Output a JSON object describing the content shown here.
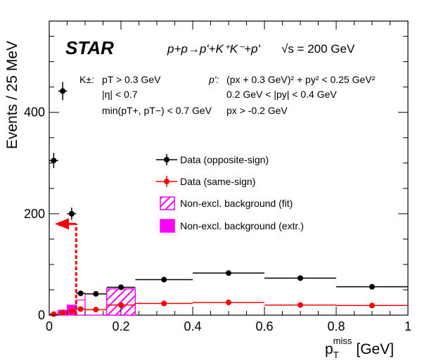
{
  "chart_data": {
    "type": "scatter",
    "experiment": "STAR",
    "process": "p+p→p'+K⁺K⁻+p'",
    "energy": "√s = 200 GeV",
    "xlabel": "p",
    "xlabel_sub": "T",
    "xlabel_sup": "miss",
    "xlabel_unit": "[GeV]",
    "ylabel": "Events / 25 MeV",
    "xlim": [
      0,
      1
    ],
    "ylim": [
      0,
      580
    ],
    "xticks": [
      0,
      0.2,
      0.4,
      0.6,
      0.8,
      1
    ],
    "xtick_labels": [
      "0",
      "0.2",
      "0.4",
      "0.6",
      "0.8",
      "1"
    ],
    "yticks": [
      0,
      200,
      400
    ],
    "ytick_labels": [
      "0",
      "200",
      "400"
    ],
    "cuts_kaon": {
      "label": "K±:",
      "lines": [
        "pT > 0.3 GeV",
        "|η| < 0.7",
        "min(pT+, pT−) < 0.7 GeV"
      ]
    },
    "cuts_proton": {
      "label": "p':",
      "lines": [
        "(px + 0.3 GeV)² + py² < 0.25 GeV²",
        "0.2 GeV < |py| < 0.4 GeV",
        "px > -0.2 GeV"
      ]
    },
    "legend": [
      {
        "label": "Data (opposite-sign)"
      },
      {
        "label": "Data (same-sign)"
      },
      {
        "label": "Non-excl. background (fit)"
      },
      {
        "label": "Non-excl. background (extr.)"
      }
    ],
    "cut_value": 0.075,
    "series": [
      {
        "name": "Data (opposite-sign)",
        "color": "#000000",
        "points": [
          {
            "x": 0.0125,
            "y": 305,
            "err": 15,
            "xlo": 0.0,
            "xhi": 0.025
          },
          {
            "x": 0.0375,
            "y": 442,
            "err": 18,
            "xlo": 0.025,
            "xhi": 0.05
          },
          {
            "x": 0.0625,
            "y": 200,
            "err": 12,
            "xlo": 0.05,
            "xhi": 0.075
          },
          {
            "x": 0.0875,
            "y": 43,
            "err": 5,
            "xlo": 0.075,
            "xhi": 0.1
          },
          {
            "x": 0.13,
            "y": 42,
            "err": 5,
            "xlo": 0.1,
            "xhi": 0.16
          },
          {
            "x": 0.2,
            "y": 55,
            "err": 5,
            "xlo": 0.16,
            "xhi": 0.24
          },
          {
            "x": 0.32,
            "y": 70,
            "err": 5,
            "xlo": 0.24,
            "xhi": 0.4
          },
          {
            "x": 0.5,
            "y": 83,
            "err": 5,
            "xlo": 0.4,
            "xhi": 0.6
          },
          {
            "x": 0.7,
            "y": 73,
            "err": 5,
            "xlo": 0.6,
            "xhi": 0.8
          },
          {
            "x": 0.9,
            "y": 56,
            "err": 5,
            "xlo": 0.8,
            "xhi": 1.0
          }
        ]
      },
      {
        "name": "Data (same-sign)",
        "color": "#ff0000",
        "points": [
          {
            "x": 0.0125,
            "y": 2,
            "err": 1,
            "xlo": 0.0,
            "xhi": 0.025
          },
          {
            "x": 0.0375,
            "y": 5,
            "err": 2,
            "xlo": 0.025,
            "xhi": 0.05
          },
          {
            "x": 0.0625,
            "y": 8,
            "err": 2,
            "xlo": 0.05,
            "xhi": 0.075
          },
          {
            "x": 0.0875,
            "y": 12,
            "err": 3,
            "xlo": 0.075,
            "xhi": 0.1
          },
          {
            "x": 0.13,
            "y": 11,
            "err": 3,
            "xlo": 0.1,
            "xhi": 0.16
          },
          {
            "x": 0.2,
            "y": 20,
            "err": 3,
            "xlo": 0.16,
            "xhi": 0.24
          },
          {
            "x": 0.32,
            "y": 23,
            "err": 3,
            "xlo": 0.24,
            "xhi": 0.4
          },
          {
            "x": 0.5,
            "y": 25,
            "err": 3,
            "xlo": 0.4,
            "xhi": 0.6
          },
          {
            "x": 0.7,
            "y": 20,
            "err": 3,
            "xlo": 0.6,
            "xhi": 0.8
          },
          {
            "x": 0.9,
            "y": 19,
            "err": 3,
            "xlo": 0.8,
            "xhi": 1.0
          }
        ]
      }
    ],
    "background_fit": [
      {
        "xlo": 0.16,
        "xhi": 0.24,
        "y": 52
      }
    ],
    "background_extr": [
      {
        "xlo": 0.025,
        "xhi": 0.05,
        "y": 10
      },
      {
        "xlo": 0.05,
        "xhi": 0.075,
        "y": 20
      }
    ],
    "background_line": [
      {
        "xlo": 0.075,
        "xhi": 0.1,
        "y": 30
      },
      {
        "xlo": 0.1,
        "xhi": 0.16,
        "y": 42
      }
    ],
    "colors": {
      "opposite": "#000000",
      "same": "#ff0000",
      "bkg": "#ff00ff"
    }
  }
}
